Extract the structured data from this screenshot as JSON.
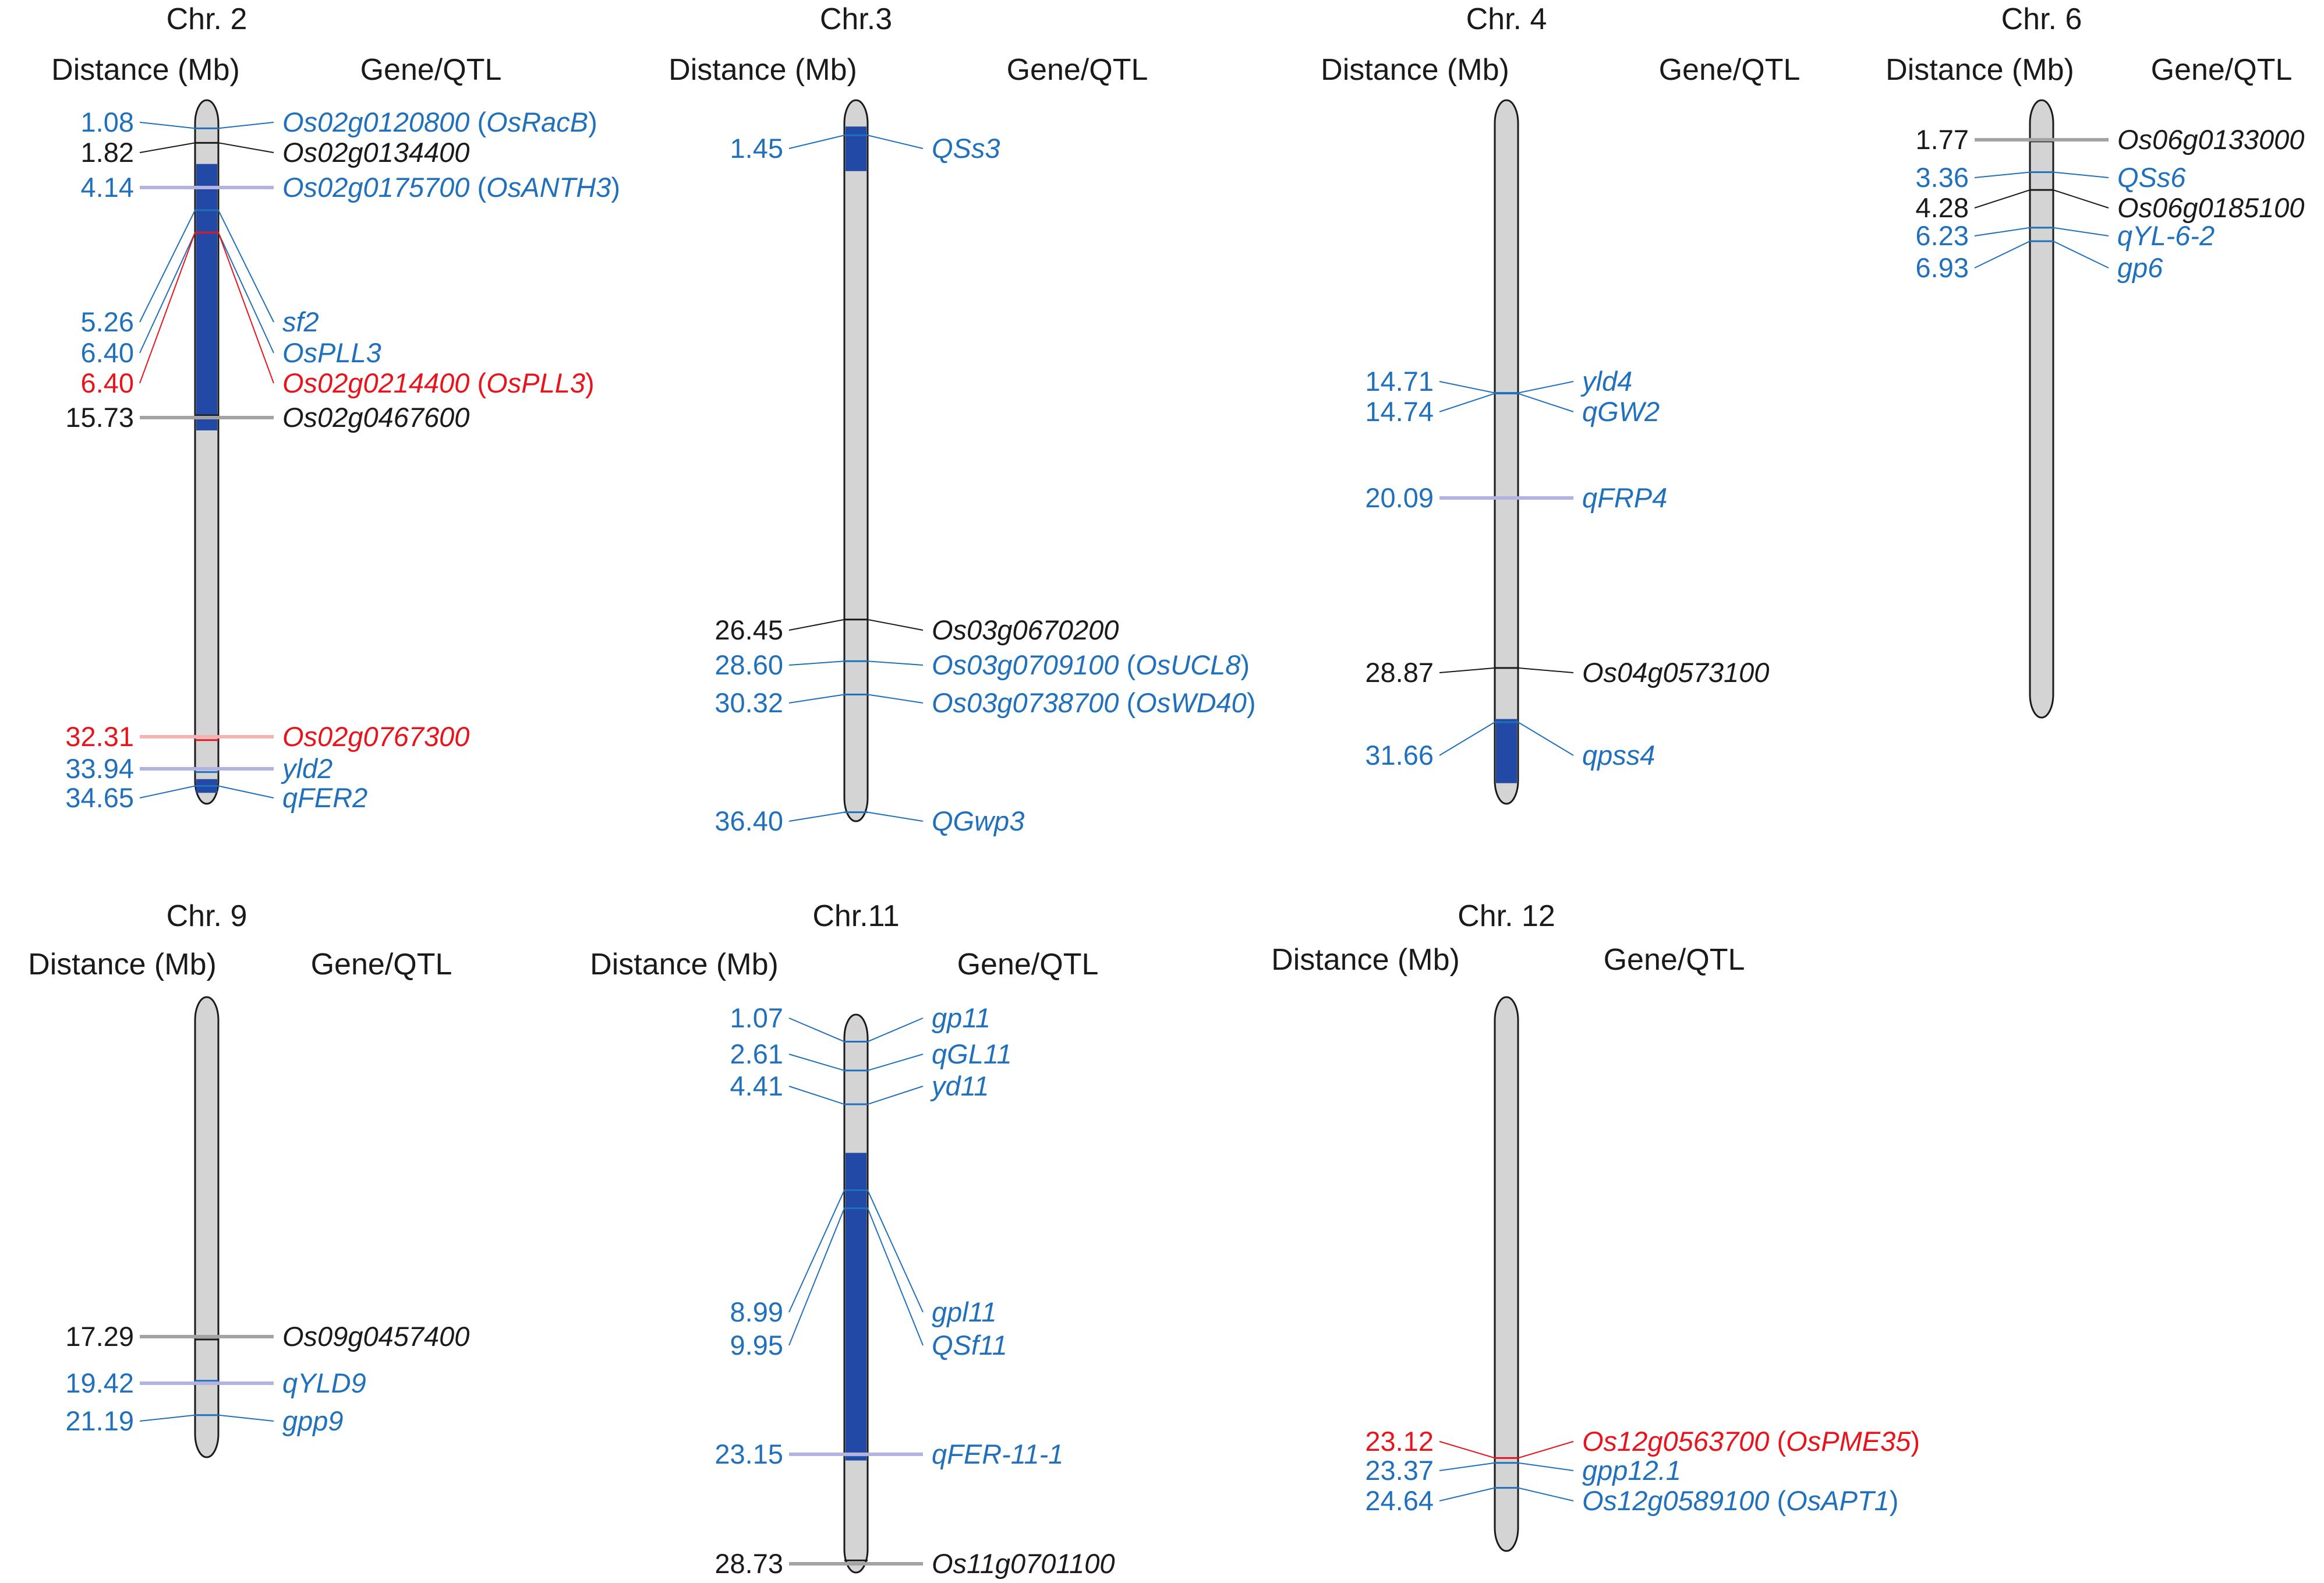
{
  "colors": {
    "black": "#1a1a1a",
    "blue": "#2070bb",
    "red": "#e8141c",
    "chrom_fill": "#d4d4d4",
    "qtl_fill": "#2249a5",
    "tick_black": "#a3a3a3",
    "tick_blue": "#b3b3e2",
    "tick_red": "#f3b3b3"
  },
  "header": {
    "distance_label": "Distance (Mb)",
    "gene_label": "Gene/QTL"
  },
  "chromosomes": [
    {
      "title": "Chr. 2",
      "length": 35.2,
      "regions": [
        {
          "start": 2.9,
          "end": 16.5
        },
        {
          "start": 34.3,
          "end": 35.0
        }
      ],
      "markers": [
        {
          "pos": "1.08",
          "label": "Os02g0120800 (OsRacB)",
          "color": "blue"
        },
        {
          "pos": "1.82",
          "label": "Os02g0134400",
          "color": "black"
        },
        {
          "pos": "4.14",
          "label": "Os02g0175700 (OsANTH3)",
          "color": "blue"
        },
        {
          "pos": "5.26",
          "label": "sf2",
          "color": "blue"
        },
        {
          "pos": "6.40",
          "label": "OsPLL3",
          "color": "blue"
        },
        {
          "pos": "6.40",
          "label": "Os02g0214400 (OsPLL3)",
          "color": "red"
        },
        {
          "pos": "15.73",
          "label": "Os02g0467600",
          "color": "black"
        },
        {
          "pos": "32.31",
          "label": "Os02g0767300",
          "color": "red"
        },
        {
          "pos": "33.94",
          "label": "yld2",
          "color": "blue"
        },
        {
          "pos": "34.65",
          "label": "qFER2",
          "color": "blue"
        }
      ]
    },
    {
      "title": "Chr.3",
      "length": 36.5,
      "regions": [
        {
          "start": 1.0,
          "end": 3.3
        }
      ],
      "markers": [
        {
          "pos": "1.45",
          "label": "QSs3",
          "color": "blue"
        },
        {
          "pos": "26.45",
          "label": "Os03g0670200",
          "color": "black"
        },
        {
          "pos": "28.60",
          "label": "Os03g0709100 (OsUCL8)",
          "color": "blue"
        },
        {
          "pos": "30.32",
          "label": "Os03g0738700 (OsWD40)",
          "color": "blue"
        },
        {
          "pos": "36.40",
          "label": "QGwp3",
          "color": "blue"
        }
      ]
    },
    {
      "title": "Chr. 4",
      "length": 35.5,
      "regions": [
        {
          "start": 31.5,
          "end": 34.8
        }
      ],
      "markers": [
        {
          "pos": "14.71",
          "label": "yld4",
          "color": "blue"
        },
        {
          "pos": "14.74",
          "label": "qGW2",
          "color": "blue"
        },
        {
          "pos": "20.09",
          "label": "qFRP4",
          "color": "blue"
        },
        {
          "pos": "28.87",
          "label": "Os04g0573100",
          "color": "black"
        },
        {
          "pos": "31.66",
          "label": "qpss4",
          "color": "blue"
        }
      ]
    },
    {
      "title": "Chr. 6",
      "length": 31.2,
      "regions": [],
      "markers": [
        {
          "pos": "1.77",
          "label": "Os06g0133000",
          "color": "black"
        },
        {
          "pos": "3.36",
          "label": "QSs6",
          "color": "blue"
        },
        {
          "pos": "4.28",
          "label": "Os06g0185100",
          "color": "black"
        },
        {
          "pos": "6.23",
          "label": "qYL-6-2",
          "color": "blue"
        },
        {
          "pos": "6.93",
          "label": "gp6",
          "color": "blue"
        }
      ]
    },
    {
      "title": "Chr. 9",
      "length": 23.0,
      "regions": [],
      "markers": [
        {
          "pos": "17.29",
          "label": "Os09g0457400",
          "color": "black"
        },
        {
          "pos": "19.42",
          "label": "qYLD9",
          "color": "blue"
        },
        {
          "pos": "21.19",
          "label": "gpp9",
          "color": "blue"
        }
      ]
    },
    {
      "title": "Chr.11",
      "length": 29.0,
      "regions": [
        {
          "start": 7.0,
          "end": 23.4
        }
      ],
      "markers": [
        {
          "pos": "1.07",
          "label": "gp11",
          "color": "blue"
        },
        {
          "pos": "2.61",
          "label": "qGL11",
          "color": "blue"
        },
        {
          "pos": "4.41",
          "label": "yd11",
          "color": "blue"
        },
        {
          "pos": "8.99",
          "label": "gpl11",
          "color": "blue"
        },
        {
          "pos": "9.95",
          "label": "QSf11",
          "color": "blue"
        },
        {
          "pos": "23.15",
          "label": "qFER-11-1",
          "color": "blue"
        },
        {
          "pos": "28.73",
          "label": "Os11g0701100",
          "color": "black"
        }
      ]
    },
    {
      "title": "Chr. 12",
      "length": 27.5,
      "regions": [],
      "markers": [
        {
          "pos": "23.12",
          "label": "Os12g0563700 (OsPME35)",
          "color": "red"
        },
        {
          "pos": "23.37",
          "label": "gpp12.1",
          "color": "blue"
        },
        {
          "pos": "24.64",
          "label": "Os12g0589100 (OsAPT1)",
          "color": "blue"
        }
      ]
    }
  ]
}
